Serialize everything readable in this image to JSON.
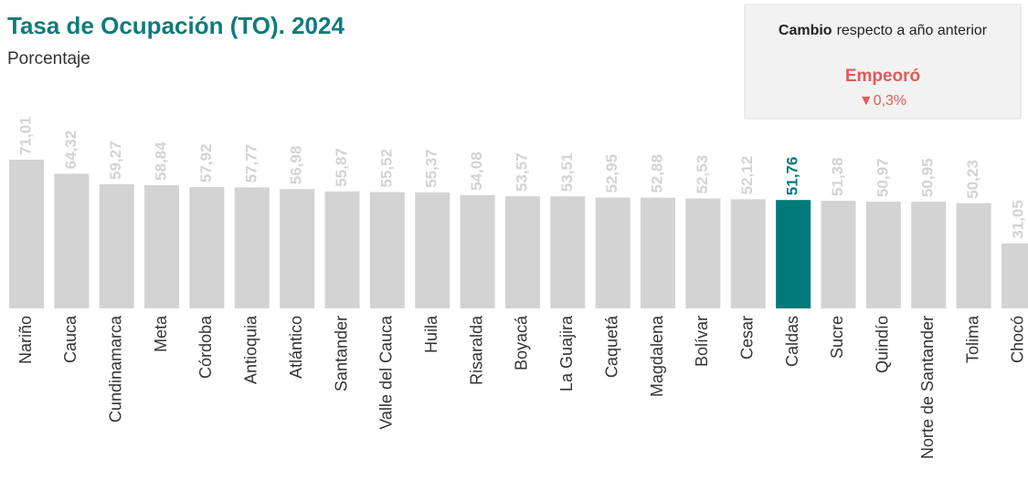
{
  "chart_data": {
    "type": "bar",
    "title": "Tasa de Ocupación (TO). 2024",
    "subtitle": "Porcentaje",
    "categories": [
      "Nariño",
      "Cauca",
      "Cundinamarca",
      "Meta",
      "Córdoba",
      "Antioquia",
      "Atlántico",
      "Santander",
      "Valle del Cauca",
      "Huila",
      "Risaralda",
      "Boyacá",
      "La Guajira",
      "Caquetá",
      "Magdalena",
      "Bolívar",
      "Cesar",
      "Caldas",
      "Sucre",
      "Quindío",
      "Norte de Santander",
      "Tolima",
      "Chocó"
    ],
    "values": [
      71.01,
      64.32,
      59.27,
      58.84,
      57.92,
      57.77,
      56.98,
      55.87,
      55.52,
      55.37,
      54.08,
      53.57,
      53.51,
      52.95,
      52.88,
      52.53,
      52.12,
      51.76,
      51.38,
      50.97,
      50.95,
      50.23,
      31.05
    ],
    "value_labels": [
      "71,01",
      "64,32",
      "59,27",
      "58,84",
      "57,92",
      "57,77",
      "56,98",
      "55,87",
      "55,52",
      "55,37",
      "54,08",
      "53,57",
      "53,51",
      "52,95",
      "52,88",
      "52,53",
      "52,12",
      "51,76",
      "51,38",
      "50,97",
      "50,95",
      "50,23",
      "31,05"
    ],
    "colors": [
      "#d3d3d3",
      "#d3d3d3",
      "#d3d3d3",
      "#d3d3d3",
      "#d3d3d3",
      "#d3d3d3",
      "#d3d3d3",
      "#d3d3d3",
      "#d3d3d3",
      "#d3d3d3",
      "#d3d3d3",
      "#d3d3d3",
      "#d3d3d3",
      "#d3d3d3",
      "#d3d3d3",
      "#d3d3d3",
      "#d3d3d3",
      "#007a7a",
      "#d3d3d3",
      "#d3d3d3",
      "#d3d3d3",
      "#d3d3d3",
      "#d3d3d3"
    ],
    "annotation": {
      "label_bold": "Cambio",
      "label": "respecto a año anterior",
      "status": "Empeoró",
      "change": "▼0,3%"
    }
  }
}
